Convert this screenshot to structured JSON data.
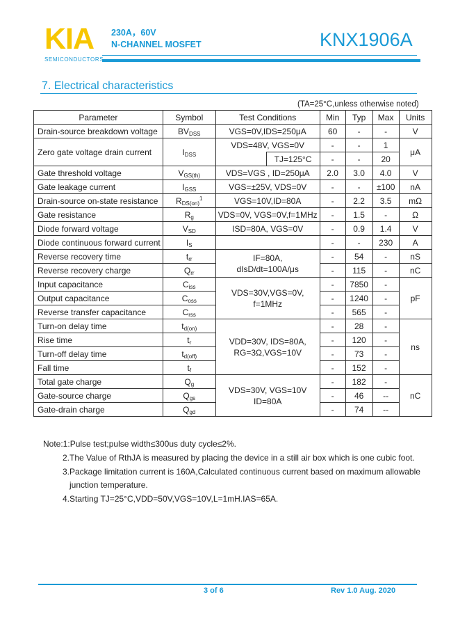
{
  "header": {
    "logo": "KIA",
    "logo_sub": "SEMICONDUCTORS",
    "rating": "230A，60V",
    "type": "N-CHANNEL MOSFET",
    "part": "KNX1906A",
    "accent": "#1a9ad6",
    "logo_color": "#f7c600"
  },
  "section_title": "7. Electrical characteristics",
  "table_note": "(TA=25°C,unless otherwise noted)",
  "table": {
    "headers": [
      "Parameter",
      "Symbol",
      "Test Conditions",
      "Min",
      "Typ",
      "Max",
      "Units"
    ],
    "rows": [
      {
        "param": "Drain-source breakdown voltage",
        "sym": "BV",
        "sub": "DSS",
        "cond": [
          "VGS=0V,IDS=250μA"
        ],
        "min": "60",
        "typ": "-",
        "max": "-",
        "unit": "V"
      },
      {
        "param": "Zero gate voltage drain current",
        "sym": "I",
        "sub": "DSS",
        "cond": [
          "VDS=48V, VGS=0V"
        ],
        "cond2": "TJ=125°C",
        "min": "-",
        "typ": "-",
        "max": "1",
        "min2": "-",
        "typ2": "-",
        "max2": "20",
        "unit": "μA"
      },
      {
        "param": "Gate threshold voltage",
        "sym": "V",
        "sub": "GS(th)",
        "cond": [
          "VDS=VGS , ID=250μA"
        ],
        "min": "2.0",
        "typ": "3.0",
        "max": "4.0",
        "unit": "V"
      },
      {
        "param": "Gate leakage current",
        "sym": "I",
        "sub": "GSS",
        "cond": [
          "VGS=±25V, VDS=0V"
        ],
        "min": "-",
        "typ": "-",
        "max": "±100",
        "unit": "nA"
      },
      {
        "param": "Drain-source on-state resistance",
        "sym": "R",
        "sub": "DS(on)",
        "sup": "1",
        "cond": [
          "VGS=10V,ID=80A"
        ],
        "min": "-",
        "typ": "2.2",
        "max": "3.5",
        "unit": "mΩ"
      },
      {
        "param": "Gate resistance",
        "sym": "R",
        "sub": "g",
        "cond": [
          "VDS=0V, VGS=0V,f=1MHz"
        ],
        "min": "-",
        "typ": "1.5",
        "max": "-",
        "unit": "Ω"
      },
      {
        "param": "Diode forward voltage",
        "sym": "V",
        "sub": "SD",
        "cond": [
          "ISD=80A, VGS=0V"
        ],
        "min": "-",
        "typ": "0.9",
        "max": "1.4",
        "unit": "V"
      },
      {
        "param": "Diode continuous forward current",
        "sym": "I",
        "sub": "S",
        "cond": [
          ""
        ],
        "min": "-",
        "typ": "-",
        "max": "230",
        "unit": "A"
      },
      {
        "param": "Reverse recovery time",
        "sym": "t",
        "sub": "rr",
        "cond": [
          "IF=80A,",
          "dIsD/dt=100A/μs"
        ],
        "min": "-",
        "typ": "54",
        "max": "-",
        "unit": "nS"
      },
      {
        "param": "Reverse recovery charge",
        "sym": "Q",
        "sub": "rr",
        "min": "-",
        "typ": "115",
        "max": "-",
        "unit": "nC"
      },
      {
        "param": "Input capacitance",
        "sym": "C",
        "sub": "iss",
        "cond": [
          "VDS=30V,VGS=0V,",
          "f=1MHz"
        ],
        "min": "-",
        "typ": "7850",
        "max": "-",
        "unit": "pF"
      },
      {
        "param": "Output capacitance",
        "sym": "C",
        "sub": "oss",
        "min": "-",
        "typ": "1240",
        "max": "-"
      },
      {
        "param": "Reverse transfer capacitance",
        "sym": "C",
        "sub": "rss",
        "min": "-",
        "typ": "565",
        "max": "-"
      },
      {
        "param": "Turn-on delay time",
        "sym": "t",
        "sub": "d(on)",
        "cond": [
          "VDD=30V, IDS=80A,",
          "RG=3Ω,VGS=10V"
        ],
        "min": "-",
        "typ": "28",
        "max": "-",
        "unit": "ns"
      },
      {
        "param": "Rise time",
        "sym": "t",
        "sub": "r",
        "min": "-",
        "typ": "120",
        "max": "-"
      },
      {
        "param": "Turn-off delay time",
        "sym": "t",
        "sub": "d(off)",
        "min": "-",
        "typ": "73",
        "max": "-"
      },
      {
        "param": "Fall time",
        "sym": "t",
        "sub": "f",
        "min": "-",
        "typ": "152",
        "max": "-"
      },
      {
        "param": "Total gate charge",
        "sym": "Q",
        "sub": "g",
        "cond": [
          "VDS=30V, VGS=10V",
          "ID=80A"
        ],
        "min": "-",
        "typ": "182",
        "max": "-",
        "unit": "nC"
      },
      {
        "param": "Gate-source charge",
        "sym": "Q",
        "sub": "gs",
        "min": "-",
        "typ": "46",
        "max": "--"
      },
      {
        "param": "Gate-drain charge",
        "sym": "Q",
        "sub": "gd",
        "min": "-",
        "typ": "74",
        "max": "--"
      }
    ]
  },
  "notes": [
    "Note:1:Pulse test;pulse width≤300us duty cycle≤2%.",
    "2.The Value of RthJA is measured by placing the device in a still air box which is one cubic foot.",
    "3.Package limitation current is 160A,Calculated continuous current based on maximum allowable",
    "junction temperature.",
    "4.Starting TJ=25°C,VDD=50V,VGS=10V,L=1mH.IAS=65A."
  ],
  "footer": {
    "page": "3 of 6",
    "rev": "Rev 1.0 Aug. 2020"
  }
}
